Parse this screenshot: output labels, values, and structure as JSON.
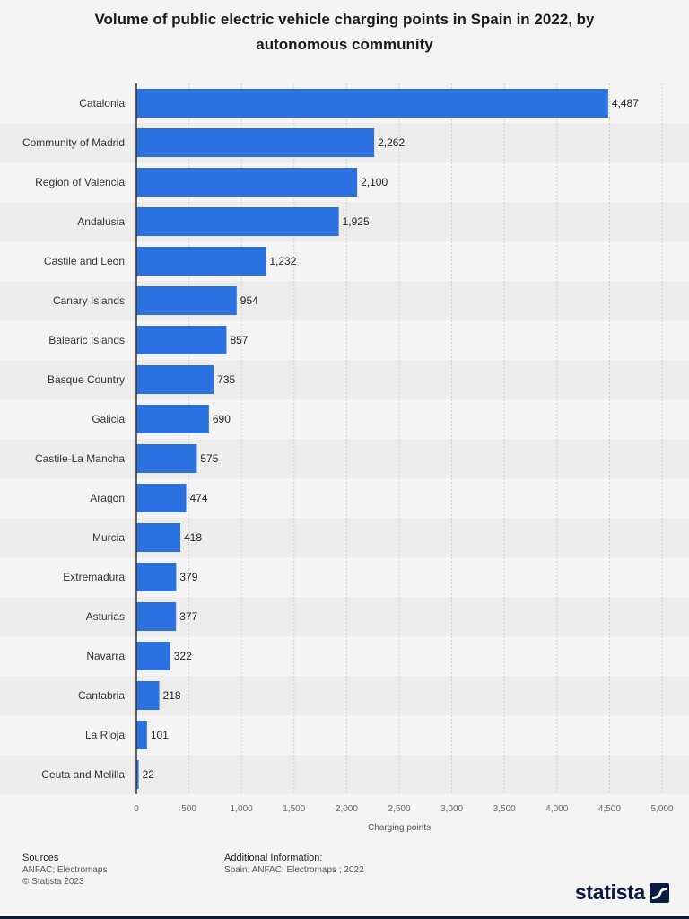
{
  "chart_data": {
    "type": "bar",
    "orientation": "horizontal",
    "title": "Volume of public electric vehicle charging points in Spain in 2022, by autonomous community",
    "xlabel": "Charging points",
    "ylabel": "",
    "xlim": [
      0,
      5000
    ],
    "xticks": [
      0,
      500,
      1000,
      1500,
      2000,
      2500,
      3000,
      3500,
      4000,
      4500,
      5000
    ],
    "xtick_labels": [
      "0",
      "500",
      "1,000",
      "1,500",
      "2,000",
      "2,500",
      "3,000",
      "3,500",
      "4,000",
      "4,500",
      "5,000"
    ],
    "grid": true,
    "bar_color": "#2b72e0",
    "categories": [
      "Catalonia",
      "Community of Madrid",
      "Region of Valencia",
      "Andalusia",
      "Castile and Leon",
      "Canary Islands",
      "Balearic Islands",
      "Basque Country",
      "Galicia",
      "Castile-La Mancha",
      "Aragon",
      "Murcia",
      "Extremadura",
      "Asturias",
      "Navarra",
      "Cantabria",
      "La Rioja",
      "Ceuta and Melilla"
    ],
    "values": [
      4487,
      2262,
      2100,
      1925,
      1232,
      954,
      857,
      735,
      690,
      575,
      474,
      418,
      379,
      377,
      322,
      218,
      101,
      22
    ],
    "value_labels": [
      "4,487",
      "2,262",
      "2,100",
      "1,925",
      "1,232",
      "954",
      "857",
      "735",
      "690",
      "575",
      "474",
      "418",
      "379",
      "377",
      "322",
      "218",
      "101",
      "22"
    ]
  },
  "footer": {
    "sources_heading": "Sources",
    "sources": "ANFAC; Electromaps",
    "copyright": "© Statista 2023",
    "additional_heading": "Additional Information:",
    "additional": "Spain; ANFAC; Electromaps ; 2022"
  },
  "brand": {
    "name": "statista",
    "logo_icon": "statista-logo-icon",
    "color": "#0b1a40"
  }
}
